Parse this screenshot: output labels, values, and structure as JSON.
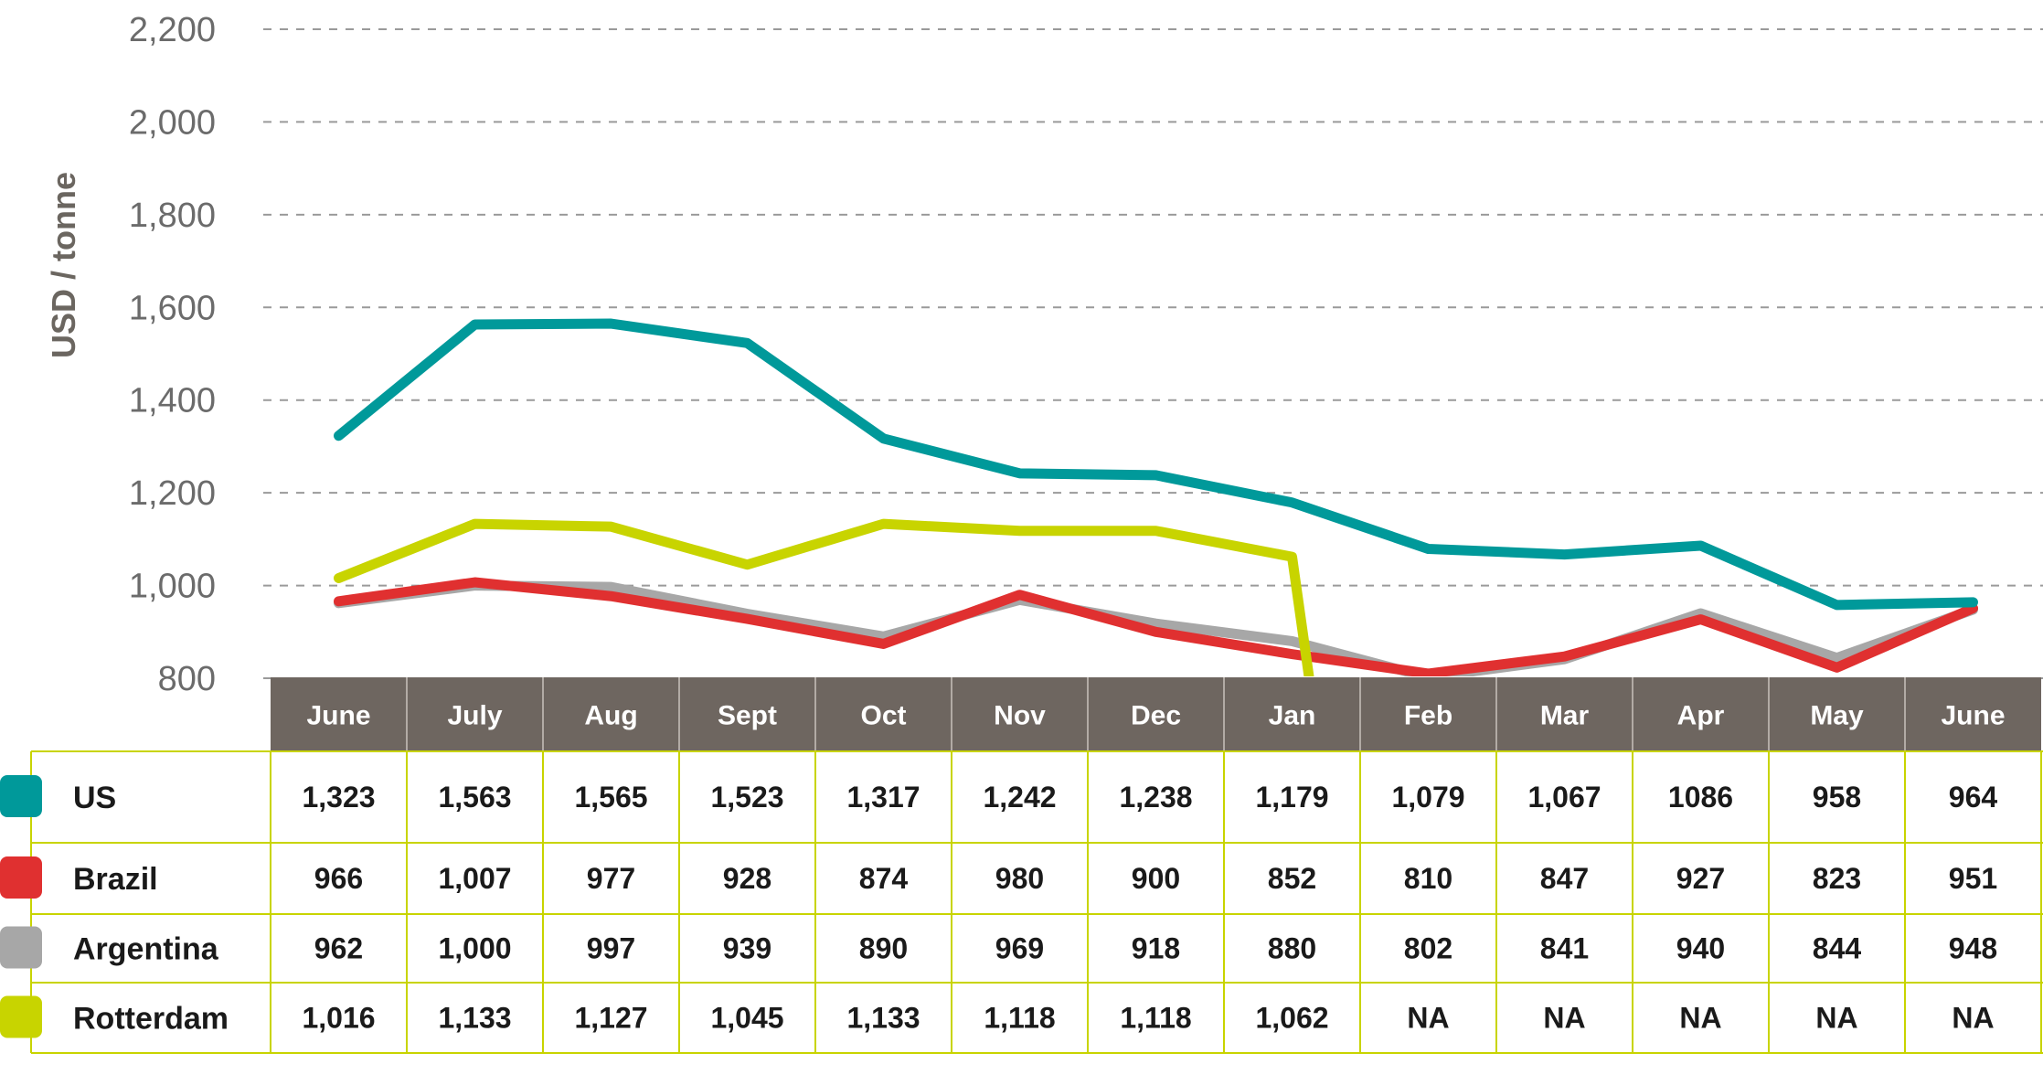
{
  "chart_data": {
    "type": "line",
    "ylabel": "USD / tonne",
    "xlabel": "",
    "title": "",
    "ylim": [
      800,
      2200
    ],
    "yticks": [
      800,
      1000,
      1200,
      1400,
      1600,
      1800,
      2000,
      2200
    ],
    "ytick_labels": [
      "800",
      "1,000",
      "1,200",
      "1,400",
      "1,600",
      "1,800",
      "2,000",
      "2,200"
    ],
    "grid": true,
    "categories": [
      "June",
      "July",
      "Aug",
      "Sept",
      "Oct",
      "Nov",
      "Dec",
      "Jan",
      "Feb",
      "Mar",
      "Apr",
      "May",
      "June"
    ],
    "series": [
      {
        "name": "US",
        "color": "#00999a",
        "values": [
          1323,
          1563,
          1565,
          1523,
          1317,
          1242,
          1238,
          1179,
          1079,
          1067,
          1086,
          958,
          964
        ],
        "labels": [
          "1,323",
          "1,563",
          "1,565",
          "1,523",
          "1,317",
          "1,242",
          "1,238",
          "1,179",
          "1,079",
          "1,067",
          "1086",
          "958",
          "964"
        ]
      },
      {
        "name": "Brazil",
        "color": "#e03030",
        "values": [
          966,
          1007,
          977,
          928,
          874,
          980,
          900,
          852,
          810,
          847,
          927,
          823,
          951
        ],
        "labels": [
          "966",
          "1,007",
          "977",
          "928",
          "874",
          "980",
          "900",
          "852",
          "810",
          "847",
          "927",
          "823",
          "951"
        ]
      },
      {
        "name": "Argentina",
        "color": "#a7a7a7",
        "values": [
          962,
          1000,
          997,
          939,
          890,
          969,
          918,
          880,
          802,
          841,
          940,
          844,
          948
        ],
        "labels": [
          "962",
          "1,000",
          "997",
          "939",
          "890",
          "969",
          "918",
          "880",
          "802",
          "841",
          "940",
          "844",
          "948"
        ]
      },
      {
        "name": "Rotterdam",
        "color": "#c8d400",
        "values": [
          1016,
          1133,
          1127,
          1045,
          1133,
          1118,
          1118,
          1062,
          null,
          null,
          null,
          null,
          null
        ],
        "labels": [
          "1,016",
          "1,133",
          "1,127",
          "1,045",
          "1,133",
          "1,118",
          "1,118",
          "1,062",
          "NA",
          "NA",
          "NA",
          "NA",
          "NA"
        ]
      }
    ],
    "table_header_color": "#6e6660",
    "table_border_color": "#c8d400"
  }
}
